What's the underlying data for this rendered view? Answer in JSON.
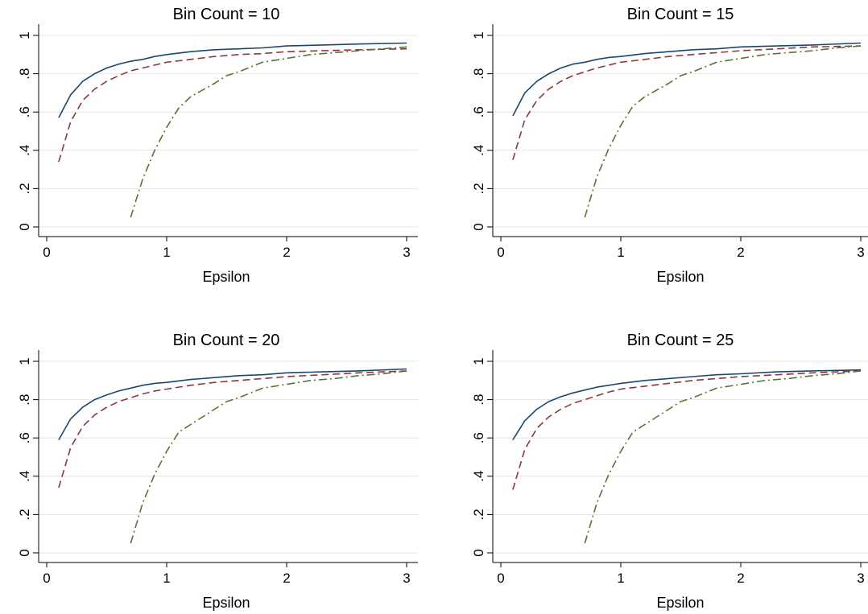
{
  "chart_data": [
    {
      "type": "line",
      "title": "Bin Count = 10",
      "xlabel": "Epsilon",
      "ylabel": "",
      "xlim": [
        0,
        3
      ],
      "ylim": [
        0,
        1
      ],
      "xticks": [
        "0",
        "1",
        "2",
        "3"
      ],
      "yticks": [
        ".0",
        ".2",
        ".4",
        ".6",
        ".8",
        "1"
      ],
      "ytick_labels": [
        "0",
        ".2",
        ".4",
        ".6",
        ".8",
        "1"
      ],
      "grid": true,
      "series": [
        {
          "style": "solid",
          "color": "#1a476f",
          "x": [
            0.1,
            0.2,
            0.3,
            0.4,
            0.5,
            0.6,
            0.7,
            0.8,
            0.9,
            1.0,
            1.2,
            1.4,
            1.6,
            1.8,
            2.0,
            2.3,
            2.6,
            3.0
          ],
          "y": [
            0.57,
            0.69,
            0.76,
            0.8,
            0.83,
            0.85,
            0.865,
            0.875,
            0.89,
            0.9,
            0.915,
            0.925,
            0.93,
            0.935,
            0.945,
            0.95,
            0.955,
            0.96
          ]
        },
        {
          "style": "dash",
          "color": "#90353b",
          "x": [
            0.1,
            0.2,
            0.3,
            0.4,
            0.5,
            0.6,
            0.7,
            0.8,
            0.9,
            1.0,
            1.2,
            1.4,
            1.6,
            1.8,
            2.0,
            2.3,
            2.6,
            3.0
          ],
          "y": [
            0.34,
            0.55,
            0.66,
            0.72,
            0.76,
            0.79,
            0.815,
            0.83,
            0.845,
            0.86,
            0.875,
            0.89,
            0.9,
            0.905,
            0.915,
            0.92,
            0.925,
            0.93
          ]
        },
        {
          "style": "dashdot",
          "color": "#55752f",
          "x": [
            0.7,
            0.8,
            0.9,
            1.0,
            1.1,
            1.2,
            1.4,
            1.5,
            1.6,
            1.8,
            2.0,
            2.2,
            2.4,
            2.6,
            2.8,
            3.0
          ],
          "y": [
            0.05,
            0.25,
            0.4,
            0.52,
            0.62,
            0.68,
            0.75,
            0.79,
            0.81,
            0.86,
            0.88,
            0.9,
            0.91,
            0.92,
            0.93,
            0.94
          ]
        }
      ]
    },
    {
      "type": "line",
      "title": "Bin Count = 15",
      "xlabel": "Epsilon",
      "ylabel": "",
      "xlim": [
        0,
        3
      ],
      "ylim": [
        0,
        1
      ],
      "xticks": [
        "0",
        "1",
        "2",
        "3"
      ],
      "ytick_labels": [
        "0",
        ".2",
        ".4",
        ".6",
        ".8",
        "1"
      ],
      "grid": true,
      "series": [
        {
          "style": "solid",
          "color": "#1a476f",
          "x": [
            0.1,
            0.2,
            0.3,
            0.4,
            0.5,
            0.6,
            0.7,
            0.8,
            0.9,
            1.0,
            1.2,
            1.4,
            1.6,
            1.8,
            2.0,
            2.3,
            2.6,
            3.0
          ],
          "y": [
            0.58,
            0.7,
            0.76,
            0.8,
            0.83,
            0.85,
            0.86,
            0.875,
            0.885,
            0.89,
            0.905,
            0.915,
            0.925,
            0.93,
            0.94,
            0.945,
            0.95,
            0.96
          ]
        },
        {
          "style": "dash",
          "color": "#90353b",
          "x": [
            0.1,
            0.2,
            0.3,
            0.4,
            0.5,
            0.6,
            0.7,
            0.8,
            0.9,
            1.0,
            1.2,
            1.4,
            1.6,
            1.8,
            2.0,
            2.3,
            2.6,
            3.0
          ],
          "y": [
            0.35,
            0.56,
            0.66,
            0.72,
            0.76,
            0.79,
            0.81,
            0.83,
            0.845,
            0.86,
            0.875,
            0.89,
            0.9,
            0.91,
            0.92,
            0.93,
            0.94,
            0.945
          ]
        },
        {
          "style": "dashdot",
          "color": "#55752f",
          "x": [
            0.7,
            0.8,
            0.9,
            1.0,
            1.1,
            1.2,
            1.4,
            1.5,
            1.6,
            1.8,
            2.0,
            2.2,
            2.4,
            2.6,
            2.8,
            3.0
          ],
          "y": [
            0.05,
            0.26,
            0.41,
            0.53,
            0.63,
            0.68,
            0.75,
            0.79,
            0.81,
            0.86,
            0.88,
            0.9,
            0.91,
            0.92,
            0.935,
            0.945
          ]
        }
      ]
    },
    {
      "type": "line",
      "title": "Bin Count = 20",
      "xlabel": "Epsilon",
      "ylabel": "",
      "xlim": [
        0,
        3
      ],
      "ylim": [
        0,
        1
      ],
      "xticks": [
        "0",
        "1",
        "2",
        "3"
      ],
      "ytick_labels": [
        "0",
        ".2",
        ".4",
        ".6",
        ".8",
        "1"
      ],
      "grid": true,
      "series": [
        {
          "style": "solid",
          "color": "#1a476f",
          "x": [
            0.1,
            0.2,
            0.3,
            0.4,
            0.5,
            0.6,
            0.7,
            0.8,
            0.9,
            1.0,
            1.2,
            1.4,
            1.6,
            1.8,
            2.0,
            2.3,
            2.6,
            3.0
          ],
          "y": [
            0.59,
            0.7,
            0.76,
            0.8,
            0.825,
            0.845,
            0.86,
            0.875,
            0.885,
            0.89,
            0.905,
            0.915,
            0.925,
            0.93,
            0.94,
            0.945,
            0.95,
            0.96
          ]
        },
        {
          "style": "dash",
          "color": "#90353b",
          "x": [
            0.1,
            0.2,
            0.3,
            0.4,
            0.5,
            0.6,
            0.7,
            0.8,
            0.9,
            1.0,
            1.2,
            1.4,
            1.6,
            1.8,
            2.0,
            2.3,
            2.6,
            3.0
          ],
          "y": [
            0.34,
            0.55,
            0.66,
            0.72,
            0.76,
            0.79,
            0.81,
            0.83,
            0.845,
            0.855,
            0.875,
            0.89,
            0.9,
            0.91,
            0.92,
            0.93,
            0.94,
            0.95
          ]
        },
        {
          "style": "dashdot",
          "color": "#55752f",
          "x": [
            0.7,
            0.8,
            0.9,
            1.0,
            1.1,
            1.2,
            1.4,
            1.5,
            1.6,
            1.8,
            2.0,
            2.2,
            2.4,
            2.6,
            2.8,
            3.0
          ],
          "y": [
            0.05,
            0.26,
            0.41,
            0.53,
            0.63,
            0.67,
            0.75,
            0.79,
            0.81,
            0.86,
            0.88,
            0.9,
            0.91,
            0.925,
            0.935,
            0.95
          ]
        }
      ]
    },
    {
      "type": "line",
      "title": "Bin Count = 25",
      "xlabel": "Epsilon",
      "ylabel": "",
      "xlim": [
        0,
        3
      ],
      "ylim": [
        0,
        1
      ],
      "xticks": [
        "0",
        "1",
        "2",
        "3"
      ],
      "ytick_labels": [
        "0",
        ".2",
        ".4",
        ".6",
        ".8",
        "1"
      ],
      "grid": true,
      "series": [
        {
          "style": "solid",
          "color": "#1a476f",
          "x": [
            0.1,
            0.2,
            0.3,
            0.4,
            0.5,
            0.6,
            0.7,
            0.8,
            0.9,
            1.0,
            1.2,
            1.4,
            1.6,
            1.8,
            2.0,
            2.3,
            2.6,
            3.0
          ],
          "y": [
            0.59,
            0.69,
            0.75,
            0.79,
            0.815,
            0.835,
            0.85,
            0.865,
            0.875,
            0.885,
            0.9,
            0.91,
            0.92,
            0.93,
            0.935,
            0.945,
            0.95,
            0.955
          ]
        },
        {
          "style": "dash",
          "color": "#90353b",
          "x": [
            0.1,
            0.2,
            0.3,
            0.4,
            0.5,
            0.6,
            0.7,
            0.8,
            0.9,
            1.0,
            1.2,
            1.4,
            1.6,
            1.8,
            2.0,
            2.3,
            2.6,
            3.0
          ],
          "y": [
            0.33,
            0.54,
            0.65,
            0.71,
            0.75,
            0.78,
            0.8,
            0.82,
            0.84,
            0.855,
            0.87,
            0.885,
            0.9,
            0.91,
            0.92,
            0.93,
            0.94,
            0.95
          ]
        },
        {
          "style": "dashdot",
          "color": "#55752f",
          "x": [
            0.7,
            0.8,
            0.9,
            1.0,
            1.1,
            1.2,
            1.4,
            1.5,
            1.6,
            1.8,
            2.0,
            2.2,
            2.4,
            2.6,
            2.8,
            3.0
          ],
          "y": [
            0.05,
            0.26,
            0.41,
            0.53,
            0.63,
            0.67,
            0.75,
            0.79,
            0.81,
            0.86,
            0.88,
            0.9,
            0.91,
            0.925,
            0.935,
            0.95
          ]
        }
      ]
    }
  ]
}
